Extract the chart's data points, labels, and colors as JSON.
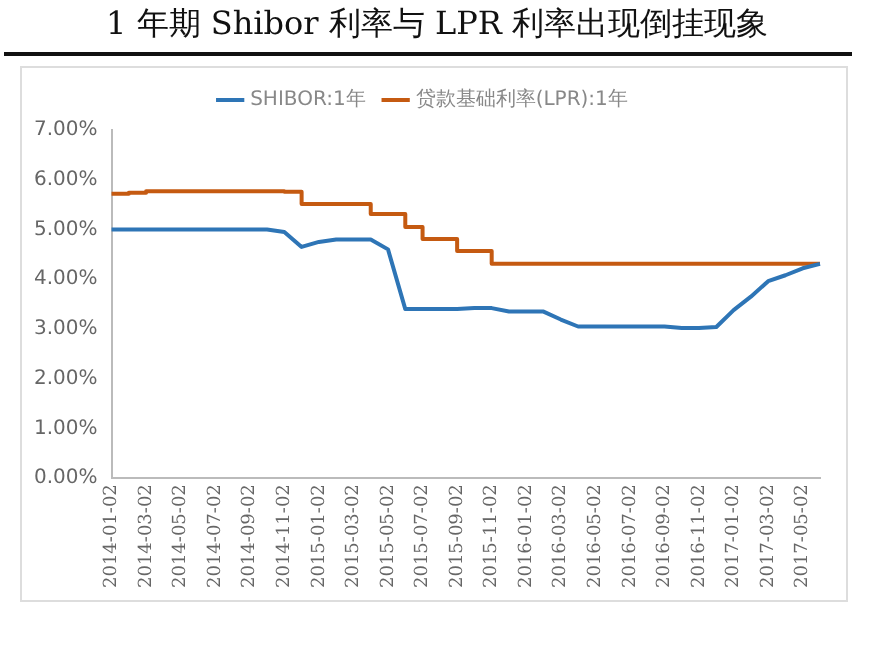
{
  "chart_data": {
    "type": "line",
    "title": "1 年期 Shibor 利率与 LPR 利率出现倒挂现象",
    "categories": [
      "2014-01-02",
      null,
      "2014-03-02",
      null,
      "2014-05-02",
      null,
      "2014-07-02",
      null,
      "2014-09-02",
      null,
      "2014-11-02",
      null,
      "2015-01-02",
      null,
      "2015-03-02",
      null,
      "2015-05-02",
      null,
      "2015-07-02",
      null,
      "2015-09-02",
      null,
      "2015-11-02",
      null,
      "2016-01-02",
      null,
      "2016-03-02",
      null,
      "2016-05-02",
      null,
      "2016-07-02",
      null,
      "2016-09-02",
      null,
      "2016-11-02",
      null,
      "2017-01-02",
      null,
      "2017-03-02",
      null,
      "2017-05-02",
      null
    ],
    "series": [
      {
        "name": "SHIBOR:1年",
        "color": "#2e75b6",
        "values": [
          5.0,
          5.0,
          5.0,
          5.0,
          5.0,
          5.0,
          5.0,
          5.0,
          5.0,
          5.0,
          4.95,
          4.65,
          4.75,
          4.8,
          4.8,
          4.8,
          4.6,
          3.4,
          3.4,
          3.4,
          3.4,
          3.42,
          3.42,
          3.35,
          3.35,
          3.35,
          3.19,
          3.05,
          3.05,
          3.05,
          3.05,
          3.05,
          3.05,
          3.02,
          3.02,
          3.04,
          3.38,
          3.65,
          3.96,
          4.08,
          4.22,
          4.31
        ]
      },
      {
        "name": "贷款基础利率(LPR):1年",
        "type": "step",
        "color": "#c55a11",
        "values": [
          5.72,
          5.74,
          5.77,
          5.77,
          5.77,
          5.77,
          5.77,
          5.77,
          5.77,
          5.77,
          5.76,
          5.51,
          5.51,
          5.51,
          5.51,
          5.31,
          5.31,
          5.05,
          4.81,
          4.81,
          4.57,
          4.57,
          4.31,
          4.31,
          4.31,
          4.31,
          4.31,
          4.31,
          4.31,
          4.31,
          4.31,
          4.31,
          4.31,
          4.31,
          4.31,
          4.31,
          4.31,
          4.31,
          4.31,
          4.31,
          4.31,
          4.31
        ]
      }
    ],
    "ylim": [
      0,
      7
    ],
    "yticks": [
      {
        "value": 0,
        "label": "0.00%"
      },
      {
        "value": 1,
        "label": "1.00%"
      },
      {
        "value": 2,
        "label": "2.00%"
      },
      {
        "value": 3,
        "label": "3.00%"
      },
      {
        "value": 4,
        "label": "4.00%"
      },
      {
        "value": 5,
        "label": "5.00%"
      },
      {
        "value": 6,
        "label": "6.00%"
      },
      {
        "value": 7,
        "label": "7.00%"
      }
    ],
    "grid": false,
    "legend": "top",
    "marker": "none"
  }
}
